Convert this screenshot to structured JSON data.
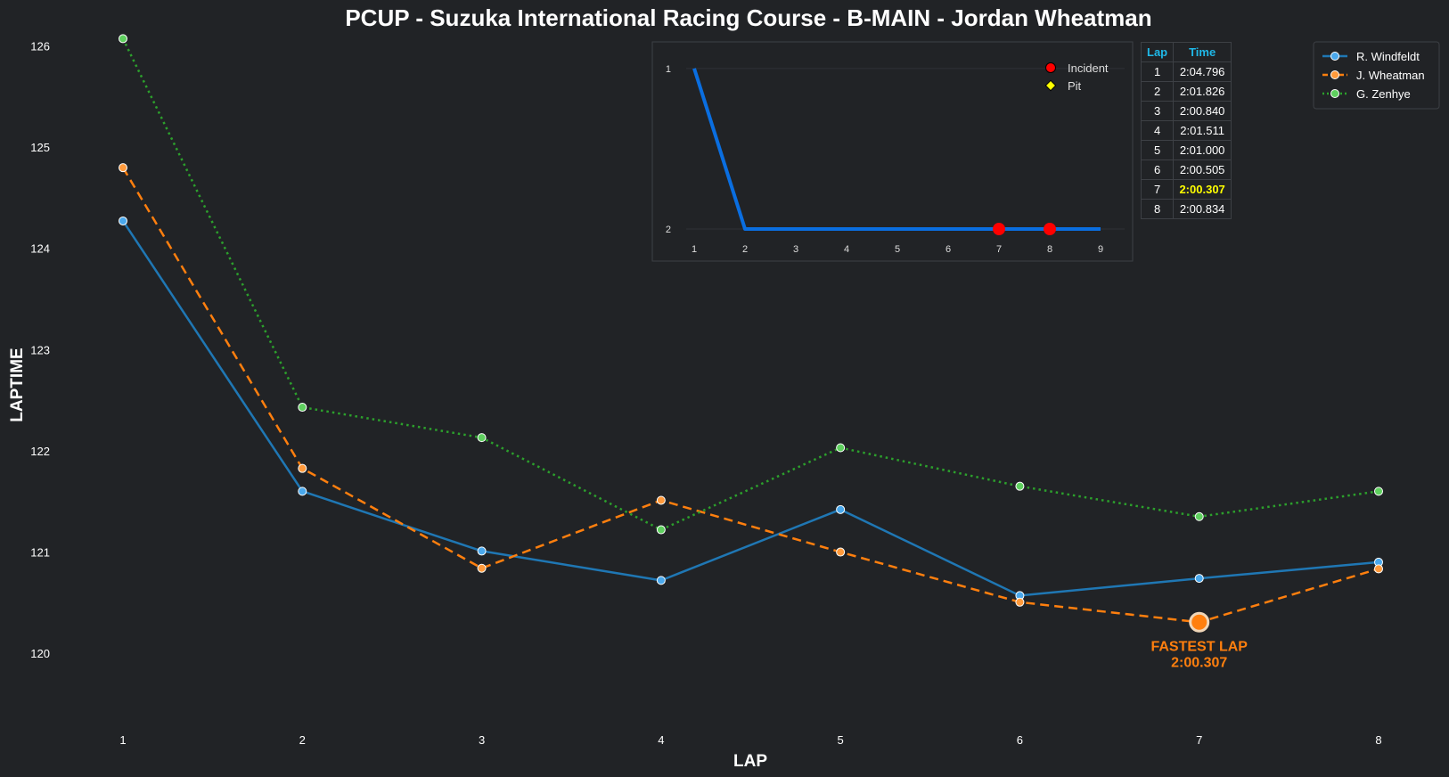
{
  "title": "PCUP - Suzuka International Racing Course - B-MAIN - Jordan Wheatman",
  "colors": {
    "background": "#212326",
    "windfeldt": "#1f77b4",
    "wheatman": "#ff7f0e",
    "zenhye": "#2ca02c",
    "position_line": "#0a6ee0",
    "incident": "#ff0000",
    "pit": "#ffff00",
    "table_header": "#1fb8e8",
    "fastest_time": "#ffff00"
  },
  "chart_data": [
    {
      "type": "line",
      "title": "PCUP - Suzuka International Racing Course - B-MAIN - Jordan Wheatman",
      "xlabel": "LAP",
      "ylabel": "LAPTIME",
      "x": [
        1,
        2,
        3,
        4,
        5,
        6,
        7,
        8
      ],
      "xlim": [
        0.5,
        8.5
      ],
      "ylim": [
        119.28,
        126.1
      ],
      "yticks": [
        120,
        121,
        122,
        123,
        124,
        125,
        126
      ],
      "grid": false,
      "legend_position": "top-right",
      "series": [
        {
          "name": "R. Windfeldt",
          "style": "solid",
          "values": [
            124.27,
            121.6,
            121.01,
            120.72,
            121.42,
            120.57,
            120.74,
            120.9
          ]
        },
        {
          "name": "J. Wheatman",
          "style": "dashed",
          "values": [
            124.796,
            121.826,
            120.84,
            121.511,
            121.0,
            120.505,
            120.307,
            120.834
          ]
        },
        {
          "name": "G. Zenhye",
          "style": "dotted",
          "values": [
            126.07,
            122.43,
            122.13,
            121.22,
            122.03,
            121.65,
            121.35,
            121.6
          ]
        }
      ],
      "annotation": {
        "line1": "FASTEST LAP",
        "line2": "2:00.307",
        "lap": 7,
        "value": 120.307
      }
    },
    {
      "type": "line",
      "title": "",
      "x": [
        1,
        2,
        3,
        4,
        5,
        6,
        7,
        8,
        9
      ],
      "values": [
        1,
        2,
        2,
        2,
        2,
        2,
        2,
        2,
        2
      ],
      "ylim": [
        0.89,
        2.05
      ],
      "yticks": [
        1,
        2
      ],
      "y_inverted": true,
      "legend_position": "top-right",
      "incidents": [
        7,
        8
      ],
      "pits": [],
      "legend": {
        "incident": "Incident",
        "pit": "Pit"
      }
    }
  ],
  "lap_table": {
    "headers": [
      "Lap",
      "Time"
    ],
    "rows": [
      {
        "lap": "1",
        "time": "2:04.796"
      },
      {
        "lap": "2",
        "time": "2:01.826"
      },
      {
        "lap": "3",
        "time": "2:00.840"
      },
      {
        "lap": "4",
        "time": "2:01.511"
      },
      {
        "lap": "5",
        "time": "2:01.000"
      },
      {
        "lap": "6",
        "time": "2:00.505"
      },
      {
        "lap": "7",
        "time": "2:00.307"
      },
      {
        "lap": "8",
        "time": "2:00.834"
      }
    ],
    "fastest_row": 6
  }
}
